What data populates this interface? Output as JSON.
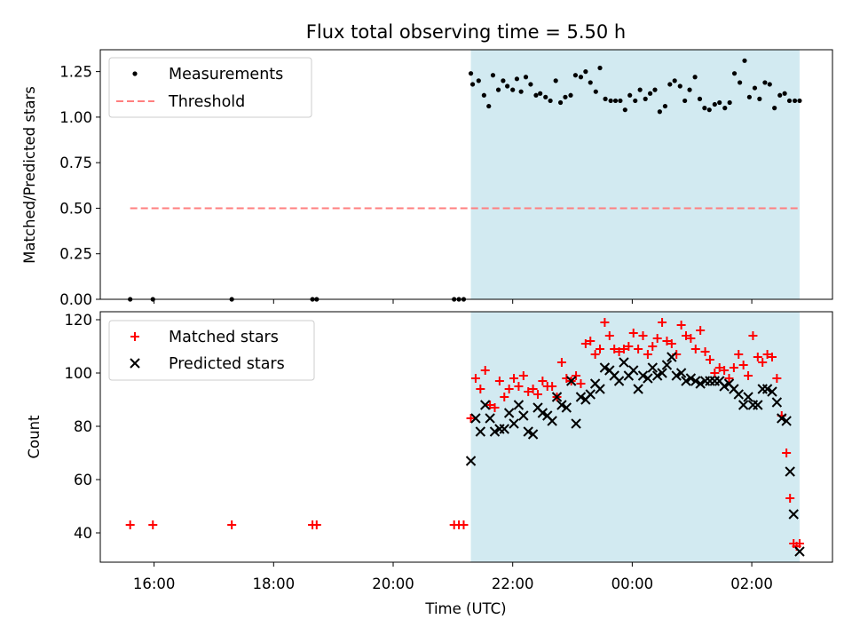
{
  "chart_data": [
    {
      "type": "scatter",
      "panel": "top",
      "title": "Flux total observing time = 5.50 h",
      "ylabel": "Matched/Predicted stars",
      "xlabel": "",
      "xlim_hours": [
        15.1,
        27.35
      ],
      "ylim": [
        0,
        1.37
      ],
      "yticks": [
        "0.00",
        "0.25",
        "0.50",
        "0.75",
        "1.00",
        "1.25"
      ],
      "ytick_values": [
        0,
        0.25,
        0.5,
        0.75,
        1.0,
        1.25
      ],
      "legend_position": "top-left",
      "legend": {
        "measurements": "Measurements",
        "threshold": "Threshold"
      },
      "shaded_interval_hours": [
        21.3,
        26.8
      ],
      "threshold": {
        "value": 0.5,
        "x_start": 15.6,
        "x_end": 26.8,
        "color": "#ff7f7f"
      },
      "series": [
        {
          "name": "Measurements",
          "color": "#000000",
          "x": [
            15.6,
            15.98,
            17.3,
            18.65,
            18.72,
            21.02,
            21.1,
            21.18,
            21.3,
            21.33,
            21.43,
            21.52,
            21.6,
            21.67,
            21.76,
            21.84,
            21.91,
            22.0,
            22.07,
            22.14,
            22.22,
            22.3,
            22.39,
            22.46,
            22.55,
            22.63,
            22.72,
            22.8,
            22.88,
            22.97,
            23.05,
            23.14,
            23.22,
            23.3,
            23.39,
            23.46,
            23.55,
            23.64,
            23.72,
            23.8,
            23.88,
            23.96,
            24.05,
            24.13,
            24.22,
            24.3,
            24.38,
            24.46,
            24.55,
            24.63,
            24.71,
            24.8,
            24.88,
            24.96,
            25.05,
            25.13,
            25.21,
            25.29,
            25.38,
            25.46,
            25.55,
            25.63,
            25.71,
            25.8,
            25.88,
            25.96,
            26.05,
            26.13,
            26.22,
            26.3,
            26.38,
            26.47,
            26.55,
            26.63,
            26.72,
            26.8
          ],
          "y": [
            0.0,
            0.0,
            0.0,
            0.0,
            0.0,
            0.0,
            0.0,
            0.0,
            1.24,
            1.18,
            1.2,
            1.12,
            1.06,
            1.23,
            1.15,
            1.2,
            1.17,
            1.15,
            1.21,
            1.14,
            1.22,
            1.18,
            1.12,
            1.13,
            1.11,
            1.09,
            1.2,
            1.08,
            1.11,
            1.12,
            1.23,
            1.22,
            1.25,
            1.19,
            1.14,
            1.27,
            1.1,
            1.09,
            1.09,
            1.09,
            1.04,
            1.12,
            1.09,
            1.15,
            1.1,
            1.13,
            1.15,
            1.03,
            1.06,
            1.18,
            1.2,
            1.17,
            1.09,
            1.15,
            1.22,
            1.1,
            1.05,
            1.04,
            1.07,
            1.08,
            1.05,
            1.08,
            1.24,
            1.19,
            1.31,
            1.11,
            1.16,
            1.1,
            1.19,
            1.18,
            1.05,
            1.12,
            1.13,
            1.09,
            1.09,
            1.09
          ]
        }
      ]
    },
    {
      "type": "scatter",
      "panel": "bottom",
      "title": "",
      "ylabel": "Count",
      "xlabel": "Time (UTC)",
      "xlim_hours": [
        15.1,
        27.35
      ],
      "ylim": [
        29,
        123
      ],
      "yticks": [
        "40",
        "60",
        "80",
        "100",
        "120"
      ],
      "ytick_values": [
        40,
        60,
        80,
        100,
        120
      ],
      "xticks": [
        "16:00",
        "18:00",
        "20:00",
        "22:00",
        "00:00",
        "02:00"
      ],
      "xtick_values": [
        16,
        18,
        20,
        22,
        24,
        26
      ],
      "legend_position": "top-left",
      "legend": {
        "matched": "Matched stars",
        "predicted": "Predicted stars"
      },
      "shaded_interval_hours": [
        21.3,
        26.8
      ],
      "series": [
        {
          "name": "Matched stars",
          "marker": "+",
          "color": "#ff0000",
          "x": [
            15.6,
            15.98,
            17.3,
            18.65,
            18.72,
            21.02,
            21.1,
            21.18,
            21.3,
            21.38,
            21.46,
            21.54,
            21.62,
            21.7,
            21.78,
            21.86,
            21.94,
            22.02,
            22.1,
            22.18,
            22.26,
            22.34,
            22.42,
            22.5,
            22.58,
            22.66,
            22.74,
            22.82,
            22.9,
            22.98,
            23.06,
            23.14,
            23.22,
            23.3,
            23.38,
            23.46,
            23.54,
            23.62,
            23.7,
            23.78,
            23.86,
            23.94,
            24.02,
            24.1,
            24.18,
            24.26,
            24.34,
            24.42,
            24.5,
            24.58,
            24.66,
            24.74,
            24.82,
            24.9,
            24.98,
            25.06,
            25.14,
            25.22,
            25.3,
            25.38,
            25.46,
            25.54,
            25.62,
            25.7,
            25.78,
            25.86,
            25.94,
            26.02,
            26.1,
            26.18,
            26.26,
            26.34,
            26.42,
            26.5,
            26.58,
            26.64,
            26.7,
            26.75,
            26.8
          ],
          "y": [
            43,
            43,
            43,
            43,
            43,
            43,
            43,
            43,
            83,
            98,
            94,
            101,
            88,
            87,
            97,
            91,
            94,
            98,
            95,
            99,
            93,
            94,
            92,
            97,
            95,
            95,
            91,
            104,
            98,
            97,
            99,
            96,
            111,
            112,
            107,
            109,
            119,
            114,
            109,
            108,
            109,
            110,
            115,
            109,
            114,
            107,
            110,
            113,
            119,
            112,
            111,
            107,
            118,
            114,
            113,
            109,
            116,
            108,
            105,
            100,
            102,
            101,
            98,
            102,
            107,
            103,
            99,
            114,
            106,
            104,
            107,
            106,
            98,
            84,
            70,
            53,
            36,
            35,
            36
          ]
        },
        {
          "name": "Predicted stars",
          "marker": "x",
          "color": "#000000",
          "x": [
            21.3,
            21.38,
            21.46,
            21.54,
            21.62,
            21.7,
            21.78,
            21.86,
            21.94,
            22.02,
            22.1,
            22.18,
            22.26,
            22.34,
            22.42,
            22.5,
            22.58,
            22.66,
            22.74,
            22.82,
            22.9,
            22.98,
            23.06,
            23.14,
            23.22,
            23.3,
            23.38,
            23.46,
            23.54,
            23.62,
            23.7,
            23.78,
            23.86,
            23.94,
            24.02,
            24.1,
            24.18,
            24.26,
            24.34,
            24.42,
            24.5,
            24.58,
            24.66,
            24.74,
            24.82,
            24.9,
            24.98,
            25.06,
            25.14,
            25.22,
            25.3,
            25.38,
            25.46,
            25.54,
            25.62,
            25.7,
            25.78,
            25.86,
            25.94,
            26.02,
            26.1,
            26.18,
            26.26,
            26.34,
            26.42,
            26.5,
            26.58,
            26.64,
            26.7,
            26.8
          ],
          "y": [
            67,
            83,
            78,
            88,
            83,
            78,
            79,
            79,
            85,
            81,
            88,
            84,
            78,
            77,
            87,
            85,
            84,
            82,
            91,
            88,
            87,
            97,
            81,
            91,
            90,
            92,
            96,
            94,
            102,
            101,
            99,
            97,
            104,
            99,
            101,
            94,
            99,
            98,
            102,
            99,
            100,
            103,
            106,
            99,
            100,
            97,
            98,
            97,
            96,
            97,
            97,
            97,
            97,
            95,
            96,
            94,
            92,
            88,
            91,
            88,
            88,
            94,
            94,
            93,
            89,
            83,
            82,
            63,
            47,
            33
          ]
        }
      ]
    }
  ]
}
